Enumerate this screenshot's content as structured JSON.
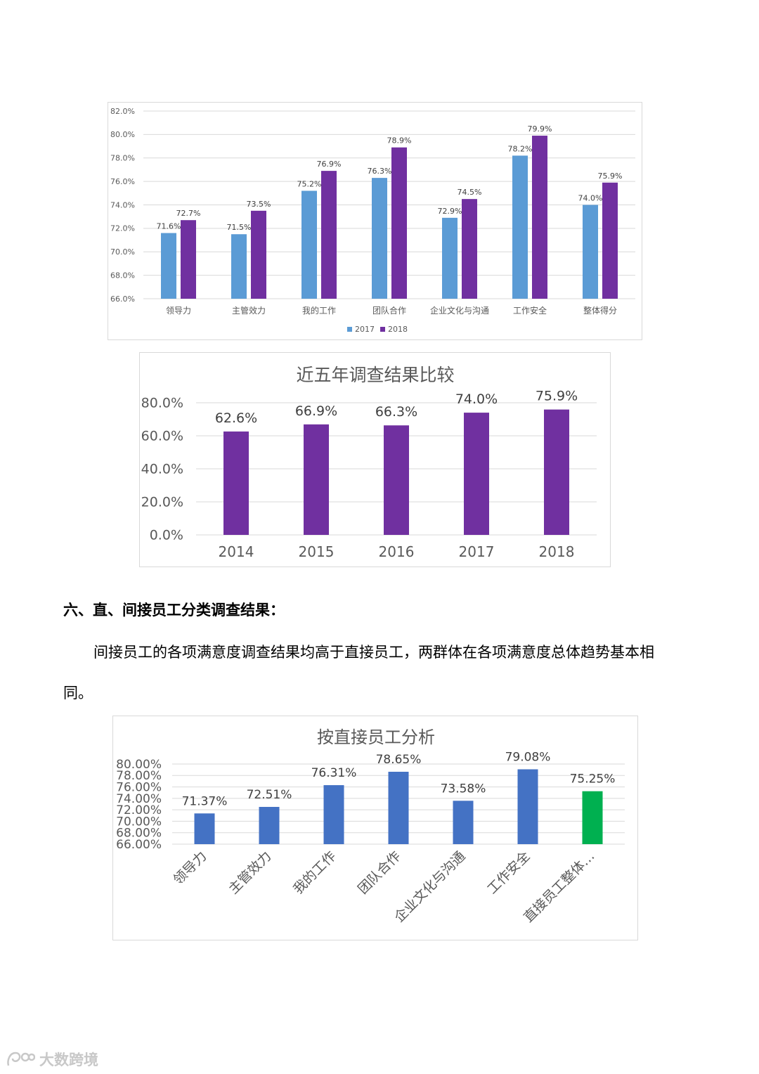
{
  "charts": [
    {
      "type": "bar",
      "title": "",
      "categories": [
        "领导力",
        "主管效力",
        "我的工作",
        "团队合作",
        "企业文化与沟通",
        "工作安全",
        "整体得分"
      ],
      "series": [
        {
          "name": "2017",
          "color": "#5b9bd5",
          "values": [
            71.6,
            71.5,
            75.2,
            76.3,
            72.9,
            78.2,
            74.0
          ],
          "labels": [
            "71.6%",
            "71.5%",
            "75.2%",
            "76.3%",
            "72.9%",
            "78.2%",
            "74.0%"
          ]
        },
        {
          "name": "2018",
          "color": "#7030a0",
          "values": [
            72.7,
            73.5,
            76.9,
            78.9,
            74.5,
            79.9,
            75.9
          ],
          "labels": [
            "72.7%",
            "73.5%",
            "76.9%",
            "78.9%",
            "74.5%",
            "79.9%",
            "75.9%"
          ]
        }
      ],
      "ylim": [
        66,
        82
      ],
      "yticks": [
        "82.0%",
        "80.0%",
        "78.0%",
        "76.0%",
        "74.0%",
        "72.0%",
        "70.0%",
        "68.0%",
        "66.0%"
      ],
      "grid": true,
      "legend": "bottom"
    },
    {
      "type": "bar",
      "title": "近五年调查结果比较",
      "categories": [
        "2014",
        "2015",
        "2016",
        "2017",
        "2018"
      ],
      "series": [
        {
          "color": "#7030a0",
          "values": [
            62.6,
            66.9,
            66.3,
            74.0,
            75.9
          ],
          "labels": [
            "62.6%",
            "66.9%",
            "66.3%",
            "74.0%",
            "75.9%"
          ]
        }
      ],
      "ylim": [
        0,
        80
      ],
      "yticks": [
        "80.0%",
        "60.0%",
        "40.0%",
        "20.0%",
        "0.0%"
      ],
      "grid": true,
      "legend": "none"
    },
    {
      "type": "bar",
      "title": "按直接员工分析",
      "categories": [
        "领导力",
        "主管效力",
        "我的工作",
        "团队合作",
        "企业文化与沟通",
        "工作安全",
        "直接员工整体…"
      ],
      "series": [
        {
          "color": "#4472c4",
          "highlight_color": "#00b050",
          "highlight_index": 6,
          "values": [
            71.37,
            72.51,
            76.31,
            78.65,
            73.58,
            79.08,
            75.25
          ],
          "labels": [
            "71.37%",
            "72.51%",
            "76.31%",
            "78.65%",
            "73.58%",
            "79.08%",
            "75.25%"
          ]
        }
      ],
      "ylim": [
        66,
        80
      ],
      "yticks": [
        "80.00%",
        "78.00%",
        "76.00%",
        "74.00%",
        "72.00%",
        "70.00%",
        "68.00%",
        "66.00%"
      ],
      "grid": true,
      "legend": "none"
    }
  ],
  "section": {
    "heading": "六、直、间接员工分类调查结果：",
    "paragraph_line1": "间接员工的各项满意度调查结果均高于直接员工，两群体在各项满意度总体趋势基本相",
    "paragraph_line2": "同。"
  },
  "watermark": {
    "text": "大数跨境"
  }
}
